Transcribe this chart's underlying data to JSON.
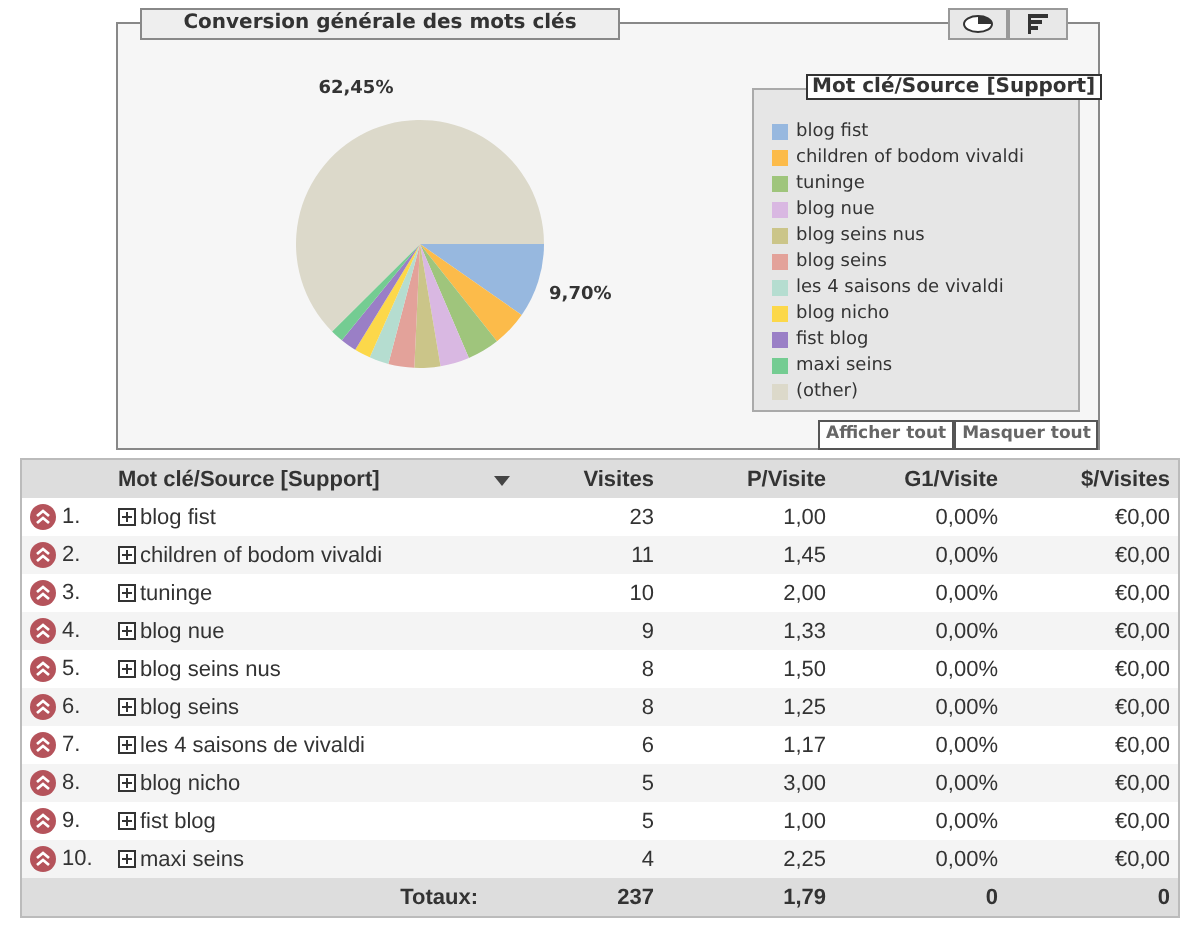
{
  "chart_data": {
    "type": "pie",
    "title": "Conversion générale des mots clés",
    "legend_title": "Mot clé/Source [Support]",
    "legend": "right",
    "categories": [
      "blog fist",
      "children of bodom vivaldi",
      "tuninge",
      "blog nue",
      "blog seins nus",
      "blog seins",
      "les 4 saisons de vivaldi",
      "blog  nicho",
      "fist blog",
      "maxi seins",
      "(other)"
    ],
    "values": [
      9.7,
      4.64,
      4.21,
      3.8,
      3.38,
      3.38,
      2.53,
      2.11,
      2.11,
      1.69,
      62.45
    ],
    "colors": [
      "#97b8df",
      "#fcbb4a",
      "#9fc57c",
      "#d9b8e2",
      "#cbc589",
      "#e3a29a",
      "#b5ddd0",
      "#fcd84a",
      "#9a7fc6",
      "#74cc92",
      "#dcd9ca"
    ],
    "value_labels": [
      "9,70%",
      null,
      null,
      null,
      null,
      null,
      null,
      null,
      null,
      null,
      "62,45%"
    ],
    "annotations": [
      "Afficher tout",
      "Masquer tout",
      "Visites",
      "P/Visite",
      "G1/Visite",
      "$/Visites",
      "Totaux:",
      "237",
      "1,79",
      "0",
      "0",
      "1.",
      "23",
      "1,00",
      "0,00%",
      "€0,00",
      "2.",
      "11",
      "1,45",
      "0,00%",
      "€0,00",
      "3.",
      "10",
      "2,00",
      "0,00%",
      "€0,00",
      "4.",
      "9",
      "1,33",
      "0,00%",
      "€0,00",
      "5.",
      "8",
      "1,50",
      "0,00%",
      "€0,00",
      "6.",
      "8",
      "1,25",
      "0,00%",
      "€0,00",
      "7.",
      "6",
      "1,17",
      "0,00%",
      "€0,00",
      "8.",
      "5",
      "3,00",
      "0,00%",
      "€0,00",
      "9.",
      "5",
      "1,00",
      "0,00%",
      "€0,00",
      "10.",
      "4",
      "2,25",
      "0,00%",
      "€0,00"
    ]
  }
}
